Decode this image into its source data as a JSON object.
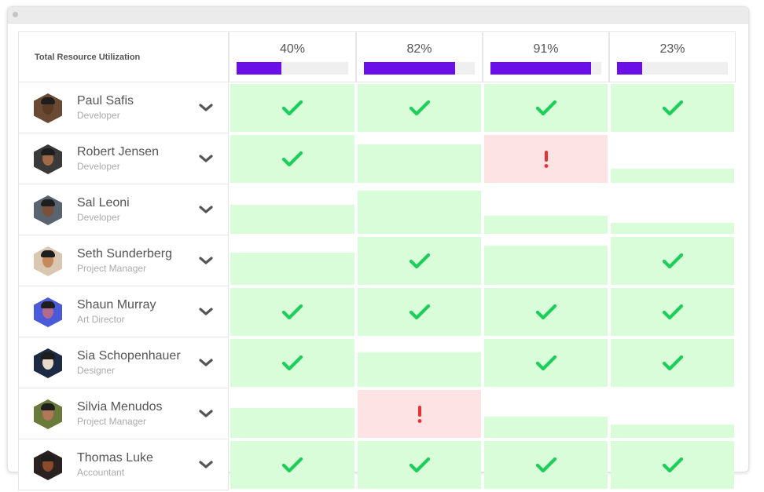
{
  "header": {
    "label": "Total Resource Utilization",
    "columns": [
      {
        "label": "40%",
        "utilization": 0.4
      },
      {
        "label": "82%",
        "utilization": 0.82
      },
      {
        "label": "91%",
        "utilization": 0.91
      },
      {
        "label": "23%",
        "utilization": 0.23
      }
    ]
  },
  "colors": {
    "accent": "#6a0fe8",
    "ok_fill": "#d9fcd9",
    "warn_fill": "#fde3e3",
    "check": "#1ccf5a",
    "alert": "#e83232"
  },
  "people": [
    {
      "name": "Paul Safis",
      "role": "Developer",
      "avatar_bg": "#6a4a32",
      "skin": "#5b3a26",
      "expand_icon": "chevron-down-icon",
      "cells": [
        {
          "status": "ok",
          "fill": 1.0,
          "icon": "check-icon"
        },
        {
          "status": "ok",
          "fill": 1.0,
          "icon": "check-icon"
        },
        {
          "status": "ok",
          "fill": 1.0,
          "icon": "check-icon"
        },
        {
          "status": "ok",
          "fill": 1.0,
          "icon": "check-icon"
        }
      ]
    },
    {
      "name": "Robert Jensen",
      "role": "Developer",
      "avatar_bg": "#3a3a3a",
      "skin": "#a06a46",
      "expand_icon": "chevron-down-icon",
      "cells": [
        {
          "status": "ok",
          "fill": 1.0,
          "icon": "check-icon"
        },
        {
          "status": "ok",
          "fill": 0.8,
          "icon": ""
        },
        {
          "status": "warn",
          "fill": 1.0,
          "icon": "exclamation-icon"
        },
        {
          "status": "ok",
          "fill": 0.3,
          "icon": ""
        }
      ]
    },
    {
      "name": "Sal Leoni",
      "role": "Developer",
      "avatar_bg": "#5a6470",
      "skin": "#7a5038",
      "expand_icon": "chevron-down-icon",
      "cells": [
        {
          "status": "ok",
          "fill": 0.6,
          "icon": ""
        },
        {
          "status": "ok",
          "fill": 0.9,
          "icon": ""
        },
        {
          "status": "ok",
          "fill": 0.38,
          "icon": ""
        },
        {
          "status": "ok",
          "fill": 0.23,
          "icon": ""
        }
      ]
    },
    {
      "name": "Seth Sunderberg",
      "role": "Project Manager",
      "avatar_bg": "#d9c7b1",
      "skin": "#c48a5c",
      "expand_icon": "chevron-down-icon",
      "cells": [
        {
          "status": "ok",
          "fill": 0.67,
          "icon": ""
        },
        {
          "status": "ok",
          "fill": 1.0,
          "icon": "check-icon"
        },
        {
          "status": "ok",
          "fill": 0.82,
          "icon": ""
        },
        {
          "status": "ok",
          "fill": 1.0,
          "icon": "check-icon"
        }
      ]
    },
    {
      "name": "Shaun Murray",
      "role": "Art Director",
      "avatar_bg": "#4a5ad8",
      "skin": "#b46a8c",
      "expand_icon": "chevron-down-icon",
      "cells": [
        {
          "status": "ok",
          "fill": 1.0,
          "icon": "check-icon"
        },
        {
          "status": "ok",
          "fill": 1.0,
          "icon": "check-icon"
        },
        {
          "status": "ok",
          "fill": 1.0,
          "icon": "check-icon"
        },
        {
          "status": "ok",
          "fill": 1.0,
          "icon": "check-icon"
        }
      ]
    },
    {
      "name": "Sia Schopenhauer",
      "role": "Designer",
      "avatar_bg": "#1c2a44",
      "skin": "#e8dcc8",
      "expand_icon": "chevron-down-icon",
      "cells": [
        {
          "status": "ok",
          "fill": 1.0,
          "icon": "check-icon"
        },
        {
          "status": "ok",
          "fill": 0.72,
          "icon": ""
        },
        {
          "status": "ok",
          "fill": 1.0,
          "icon": "check-icon"
        },
        {
          "status": "ok",
          "fill": 1.0,
          "icon": "check-icon"
        }
      ]
    },
    {
      "name": "Silvia Menudos",
      "role": "Project Manager",
      "avatar_bg": "#6a7a3a",
      "skin": "#b07858",
      "expand_icon": "chevron-down-icon",
      "cells": [
        {
          "status": "ok",
          "fill": 0.62,
          "icon": ""
        },
        {
          "status": "warn",
          "fill": 1.0,
          "icon": "exclamation-icon"
        },
        {
          "status": "ok",
          "fill": 0.45,
          "icon": ""
        },
        {
          "status": "ok",
          "fill": 0.28,
          "icon": ""
        }
      ]
    },
    {
      "name": "Thomas Luke",
      "role": "Accountant",
      "avatar_bg": "#2a2220",
      "skin": "#8c4a2c",
      "expand_icon": "chevron-down-icon",
      "cells": [
        {
          "status": "ok",
          "fill": 1.0,
          "icon": "check-icon"
        },
        {
          "status": "ok",
          "fill": 1.0,
          "icon": "check-icon"
        },
        {
          "status": "ok",
          "fill": 1.0,
          "icon": "check-icon"
        },
        {
          "status": "ok",
          "fill": 1.0,
          "icon": "check-icon"
        }
      ]
    }
  ]
}
